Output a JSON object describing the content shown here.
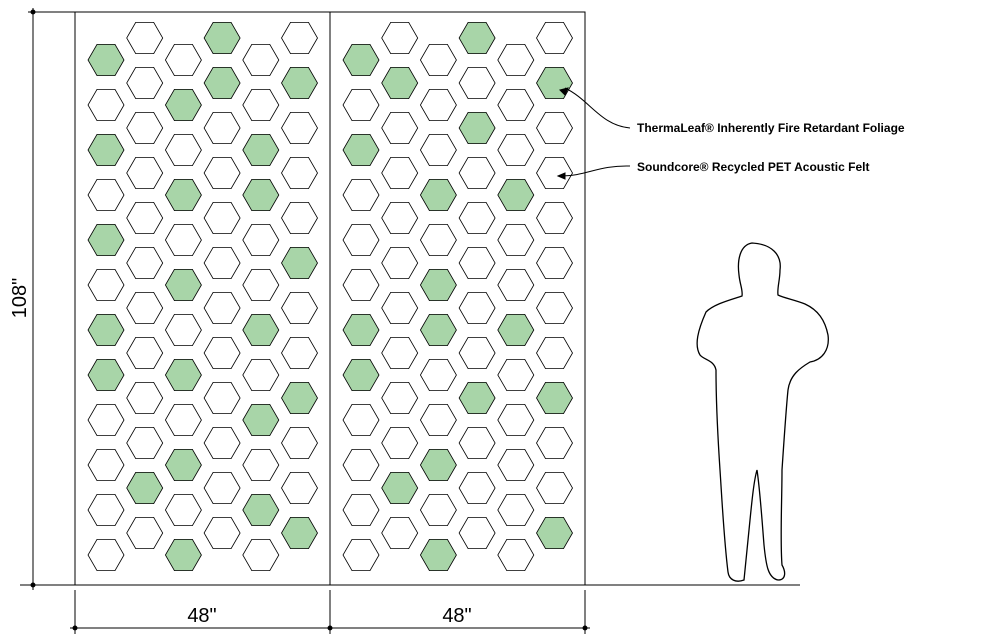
{
  "dimensions": {
    "height": "108\"",
    "width_left": "48\"",
    "width_right": "48\""
  },
  "callouts": [
    {
      "label": "ThermaLeaf® Inherently Fire Retardant Foliage"
    },
    {
      "label": "Soundcore® Recycled PET Acoustic Felt"
    }
  ]
}
